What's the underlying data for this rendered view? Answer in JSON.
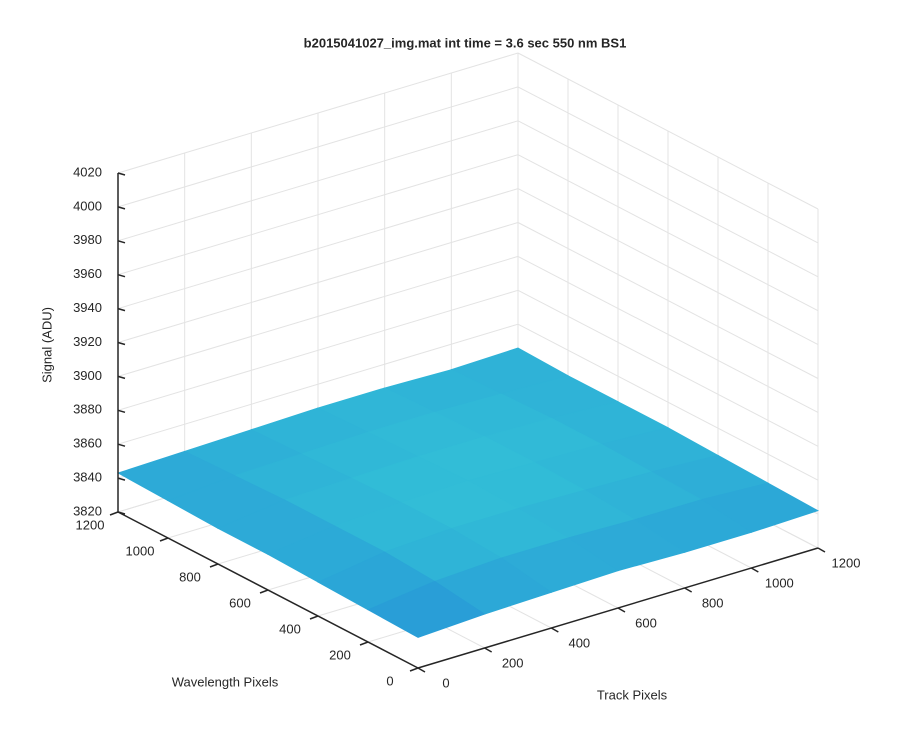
{
  "chart_data": {
    "type": "surface",
    "title": "b2015041027_img.mat int time = 3.6 sec  550 nm BS1",
    "x_label": "Track Pixels",
    "y_label": "Wavelength Pixels",
    "z_label": "Signal (ADU)",
    "x": [
      0,
      200,
      400,
      600,
      800,
      1000,
      1200
    ],
    "y": [
      0,
      200,
      400,
      600,
      800,
      1000,
      1200
    ],
    "z": [
      [
        3838,
        3840,
        3841,
        3842,
        3841,
        3841,
        3842
      ],
      [
        3839,
        3844,
        3846,
        3846,
        3845,
        3845,
        3843
      ],
      [
        3840,
        3846,
        3848,
        3848,
        3847,
        3846,
        3844
      ],
      [
        3841,
        3846,
        3848,
        3849,
        3848,
        3847,
        3845
      ],
      [
        3841,
        3846,
        3847,
        3848,
        3848,
        3847,
        3845
      ],
      [
        3842,
        3845,
        3846,
        3847,
        3847,
        3846,
        3845
      ],
      [
        3843,
        3844,
        3845,
        3846,
        3846,
        3845,
        3846
      ]
    ],
    "xlim": [
      0,
      1200
    ],
    "ylim": [
      0,
      1200
    ],
    "zlim": [
      3820,
      4020
    ],
    "xticks": [
      0,
      200,
      400,
      600,
      800,
      1000,
      1200
    ],
    "yticks": [
      0,
      200,
      400,
      600,
      800,
      1000,
      1200
    ],
    "zticks": [
      3820,
      3840,
      3860,
      3880,
      3900,
      3920,
      3940,
      3960,
      3980,
      4000,
      4020
    ],
    "grid": true
  }
}
